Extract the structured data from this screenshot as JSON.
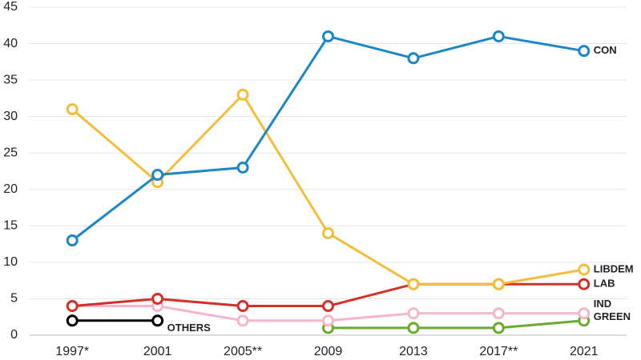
{
  "chart_data": {
    "type": "line",
    "categories": [
      "1997*",
      "2001",
      "2005**",
      "2009",
      "2013",
      "2017**",
      "2021"
    ],
    "ylim": [
      0,
      45
    ],
    "yticks": [
      0,
      5,
      10,
      15,
      20,
      25,
      30,
      35,
      40,
      45
    ],
    "grid": true,
    "series": [
      {
        "name": "GREEN",
        "color": "#6aab2f",
        "values": [
          null,
          null,
          null,
          1,
          1,
          1,
          2
        ]
      },
      {
        "name": "IND",
        "color": "#f4b6c8",
        "values": [
          4,
          4,
          2,
          2,
          3,
          3,
          3
        ]
      },
      {
        "name": "LAB",
        "color": "#d3302a",
        "values": [
          4,
          5,
          4,
          4,
          7,
          7,
          7
        ]
      },
      {
        "name": "LIBDEM",
        "color": "#f5bd3c",
        "values": [
          31,
          21,
          33,
          14,
          7,
          7,
          9
        ]
      },
      {
        "name": "CON",
        "color": "#1a87c9",
        "values": [
          13,
          22,
          23,
          41,
          38,
          41,
          39
        ]
      },
      {
        "name": "OTHERS",
        "color": "#000000",
        "values": [
          2,
          2,
          null,
          null,
          null,
          null,
          null
        ]
      }
    ]
  }
}
